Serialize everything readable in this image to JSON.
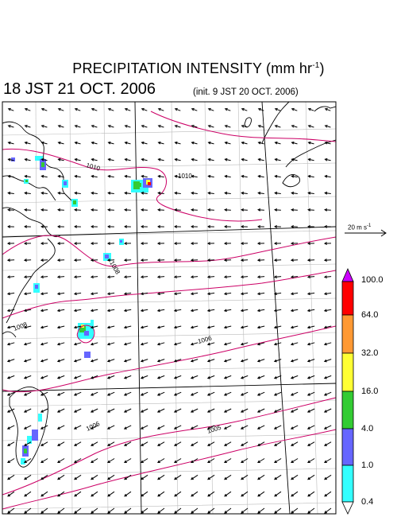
{
  "title": {
    "main": "PRECIPITATION INTENSITY (mm hr",
    "unit_sup": "-1",
    "main_close": ")"
  },
  "valid_time": "18 JST 21 OCT. 2006",
  "init_time": "(init. 9 JST 20 OCT. 2006)",
  "reference_vector": {
    "label": "20 m s",
    "sup": "-1"
  },
  "isobar_labels": [
    "1010",
    "1010",
    "1008",
    "1008",
    "1006",
    "1006",
    "1005"
  ],
  "legend": {
    "levels": [
      "100.0",
      "64.0",
      "32.0",
      "16.0",
      "4.0",
      "1.0",
      "0.4"
    ],
    "colors": [
      "#cc00ff",
      "#ff0000",
      "#ff9933",
      "#ffff33",
      "#33cc33",
      "#6666ff",
      "#33ffff",
      "#ffffff"
    ]
  },
  "colors": {
    "isobar": "#cc0066",
    "coast": "#000000",
    "graticule": "#bbbbbb"
  }
}
